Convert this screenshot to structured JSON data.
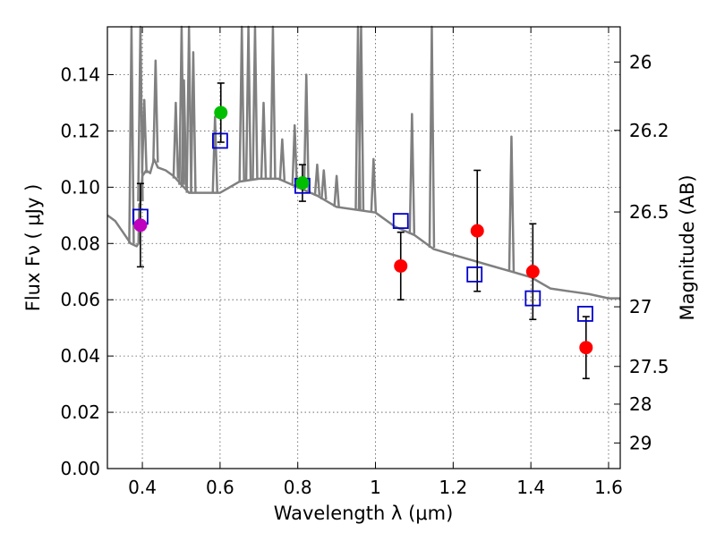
{
  "chart_data": {
    "type": "scatter",
    "xlabel": "Wavelength  λ (μm)",
    "ylabel": "Flux  Fν  ( μJy )",
    "y2label": "Magnitude (AB)",
    "xlim": [
      0.31,
      1.63
    ],
    "ylim": [
      0.0,
      0.157
    ],
    "grid": true,
    "xticks": [
      0.4,
      0.6,
      0.8,
      1.0,
      1.2,
      1.4,
      1.6
    ],
    "xtick_labels": [
      "0.4",
      "0.6",
      "0.8",
      "1",
      "1.2",
      "1.4",
      "1.6"
    ],
    "yticks": [
      0.0,
      0.02,
      0.04,
      0.06,
      0.08,
      0.1,
      0.12,
      0.14
    ],
    "ytick_labels": [
      "0.00",
      "0.02",
      "0.04",
      "0.06",
      "0.08",
      "0.10",
      "0.12",
      "0.14"
    ],
    "y2ticks": [
      {
        "label": "26",
        "flux": 0.1445
      },
      {
        "label": "26.2",
        "flux": 0.1202
      },
      {
        "label": "26.5",
        "flux": 0.0912
      },
      {
        "label": "27",
        "flux": 0.0575
      },
      {
        "label": "27.5",
        "flux": 0.0363
      },
      {
        "label": "28",
        "flux": 0.0229
      },
      {
        "label": "29",
        "flux": 0.0091
      }
    ],
    "colors": {
      "template": "#808080",
      "model_markers": "#0000cc",
      "magenta": "#bf00bf",
      "green": "#00bf00",
      "red": "#ff0000",
      "errorbar": "#000000",
      "grid": "#555555"
    },
    "series": [
      {
        "name": "model template",
        "style": "line",
        "x": [
          0.31,
          0.33,
          0.35,
          0.37,
          0.385,
          0.39,
          0.392,
          0.394,
          0.396,
          0.4,
          0.41,
          0.42,
          0.43,
          0.44,
          0.46,
          0.48,
          0.5,
          0.52,
          0.55,
          0.6,
          0.65,
          0.7,
          0.75,
          0.8,
          0.85,
          0.9,
          0.95,
          1.0,
          1.05,
          1.1,
          1.15,
          1.2,
          1.25,
          1.3,
          1.35,
          1.4,
          1.45,
          1.5,
          1.55,
          1.6,
          1.63
        ],
        "y": [
          0.09,
          0.088,
          0.084,
          0.08,
          0.079,
          0.08,
          0.094,
          0.092,
          0.098,
          0.104,
          0.106,
          0.105,
          0.11,
          0.107,
          0.106,
          0.104,
          0.101,
          0.098,
          0.098,
          0.098,
          0.102,
          0.103,
          0.103,
          0.1,
          0.097,
          0.093,
          0.092,
          0.091,
          0.086,
          0.083,
          0.078,
          0.076,
          0.074,
          0.072,
          0.07,
          0.068,
          0.064,
          0.063,
          0.062,
          0.0605,
          0.0605
        ]
      },
      {
        "name": "emission lines",
        "style": "spikes",
        "x": [
          0.372,
          0.395,
          0.405,
          0.434,
          0.486,
          0.501,
          0.507,
          0.52,
          0.531,
          0.587,
          0.656,
          0.673,
          0.69,
          0.712,
          0.736,
          0.76,
          0.792,
          0.822,
          0.85,
          0.867,
          0.9,
          0.955,
          0.963,
          0.995,
          1.094,
          1.145,
          1.35
        ],
        "y": [
          0.157,
          0.157,
          0.131,
          0.145,
          0.13,
          0.157,
          0.138,
          0.157,
          0.148,
          0.125,
          0.157,
          0.157,
          0.157,
          0.13,
          0.157,
          0.117,
          0.122,
          0.14,
          0.108,
          0.106,
          0.104,
          0.157,
          0.157,
          0.11,
          0.126,
          0.157,
          0.118
        ]
      },
      {
        "name": "model photometry",
        "style": "open-square",
        "x": [
          0.395,
          0.6,
          0.812,
          1.065,
          1.255,
          1.405,
          1.54
        ],
        "y": [
          0.0895,
          0.1165,
          0.1005,
          0.088,
          0.069,
          0.0605,
          0.055
        ]
      },
      {
        "name": "observed (magenta)",
        "style": "filled-circle",
        "x": [
          0.395
        ],
        "y": [
          0.0865
        ],
        "yerr": [
          0.0148
        ]
      },
      {
        "name": "observed (green)",
        "style": "filled-circle",
        "x": [
          0.602,
          0.812
        ],
        "y": [
          0.1265,
          0.1015
        ],
        "yerr": [
          0.0105,
          0.0065
        ]
      },
      {
        "name": "observed (red)",
        "style": "filled-circle",
        "x": [
          1.065,
          1.262,
          1.405,
          1.542
        ],
        "y": [
          0.072,
          0.0845,
          0.07,
          0.043
        ],
        "yerr": [
          0.012,
          0.0215,
          0.017,
          0.011
        ]
      }
    ]
  }
}
